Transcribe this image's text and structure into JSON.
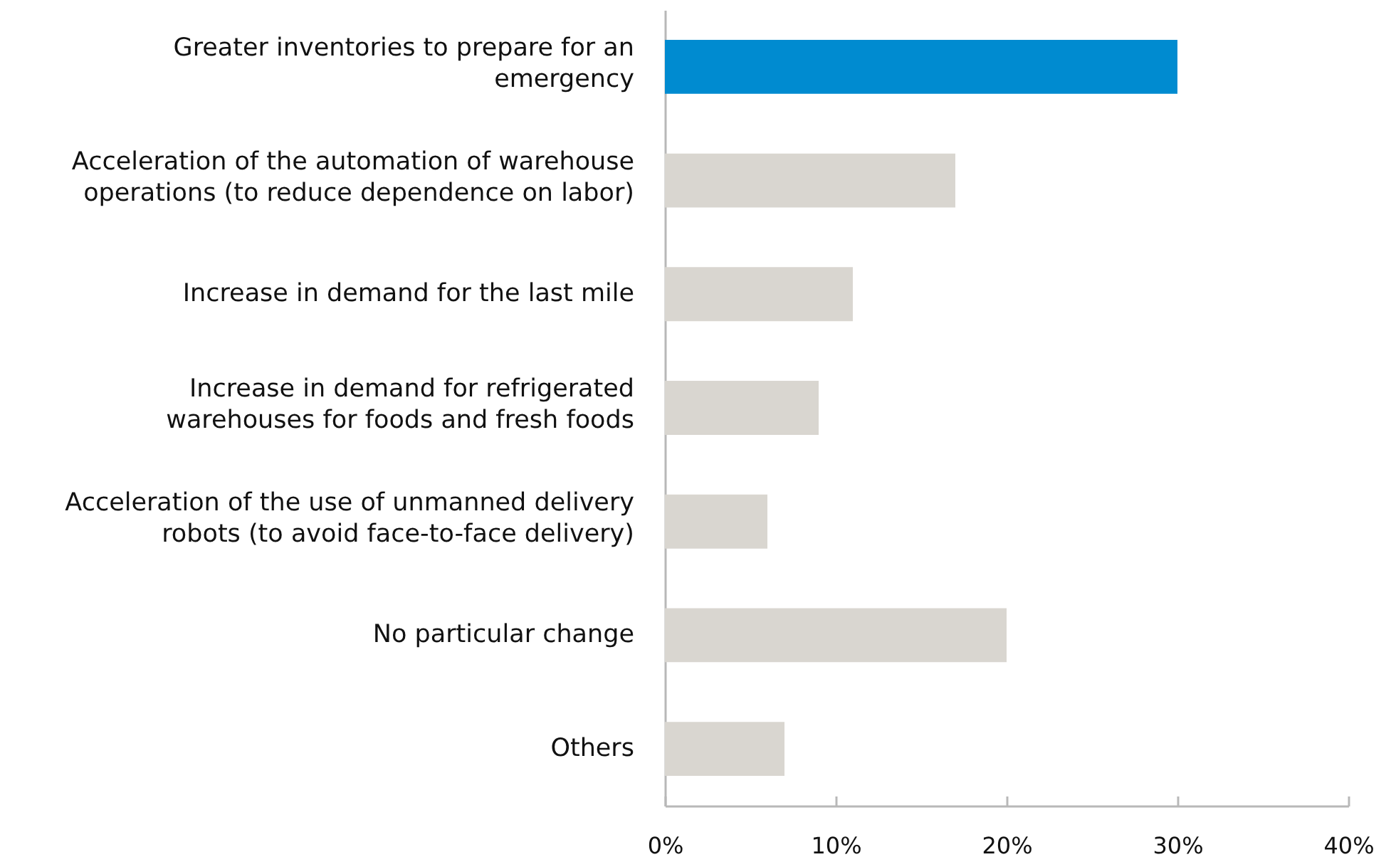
{
  "chart_data": {
    "type": "bar",
    "orientation": "horizontal",
    "categories": [
      "Greater inventories to prepare for an emergency",
      "Acceleration of the automation of warehouse operations (to reduce dependence on labor)",
      "Increase in demand for the last mile",
      "Increase in demand for refrigerated warehouses for foods and fresh foods",
      "Acceleration of the use of unmanned delivery robots (to avoid face-to-face delivery)",
      "No particular change",
      "Others"
    ],
    "values": [
      30,
      17,
      11,
      9,
      6,
      20,
      7
    ],
    "colors": [
      "#008bd0",
      "#d9d6d0",
      "#d9d6d0",
      "#d9d6d0",
      "#d9d6d0",
      "#d9d6d0",
      "#d9d6d0"
    ],
    "xlim": [
      0,
      40
    ],
    "xticks": [
      {
        "value": 0,
        "label": "0%"
      },
      {
        "value": 10,
        "label": "10%"
      },
      {
        "value": 20,
        "label": "20%"
      },
      {
        "value": 30,
        "label": "30%"
      },
      {
        "value": 40,
        "label": "40%"
      }
    ],
    "grid": false
  }
}
